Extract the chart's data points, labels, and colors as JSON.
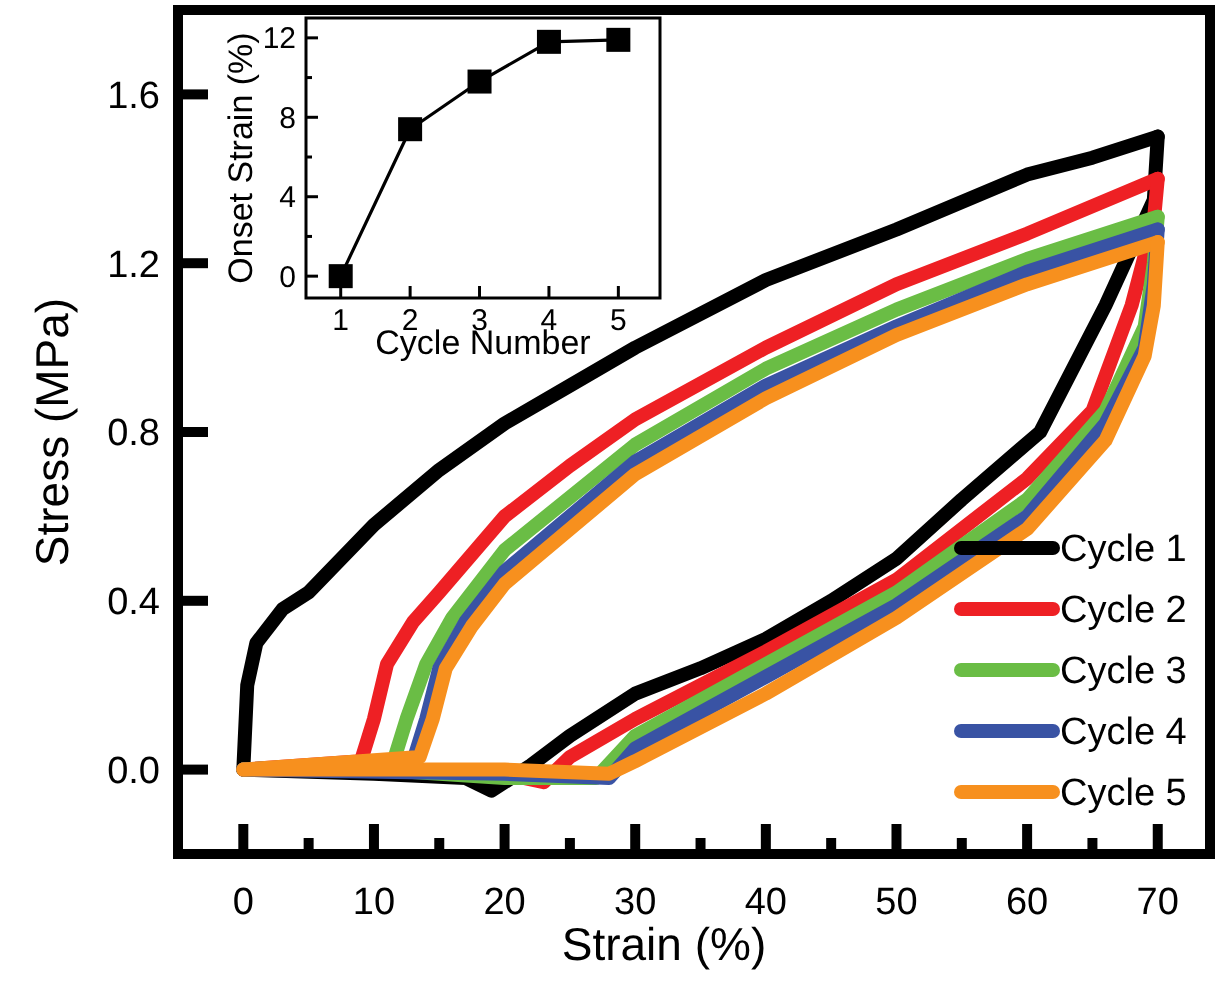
{
  "chart_data": [
    {
      "type": "line",
      "xlabel": "Strain (%)",
      "ylabel": "Stress (MPa)",
      "xlim": [
        -5,
        74
      ],
      "ylim": [
        -0.2,
        1.8
      ],
      "xticks": [
        0,
        {
          "value": 5,
          "label": null
        },
        10,
        {
          "value": 15,
          "label": null
        },
        20,
        {
          "value": 25,
          "label": null
        },
        30,
        {
          "value": 35,
          "label": null
        },
        40,
        {
          "value": 45,
          "label": null
        },
        50,
        {
          "value": 55,
          "label": null
        },
        60,
        {
          "value": 65,
          "label": null
        },
        70
      ],
      "yticks": [
        {
          "value": 0,
          "label": "0.0"
        },
        {
          "value": 0.4,
          "label": "0.4"
        },
        {
          "value": 0.8,
          "label": "0.8"
        },
        {
          "value": 1.2,
          "label": "1.2"
        },
        {
          "value": 1.6,
          "label": "1.6"
        }
      ],
      "legend": "bottom right",
      "marker": "none",
      "line_style": "solid",
      "series": [
        {
          "name": "Cycle 1",
          "color": "#000000",
          "x": [
            0,
            0.3,
            1,
            3,
            5,
            10,
            15,
            20,
            25,
            30,
            40,
            50,
            60,
            65,
            70
          ],
          "values": [
            0,
            0.2,
            0.3,
            0.38,
            0.42,
            0.58,
            0.71,
            0.82,
            0.91,
            1.0,
            1.16,
            1.28,
            1.41,
            1.45,
            1.5
          ]
        },
        {
          "color": "#000000",
          "x": [
            70,
            69.7,
            66,
            61,
            55,
            50,
            45,
            40,
            35,
            30,
            25,
            22,
            19,
            17,
            10,
            0
          ],
          "values": [
            1.5,
            1.35,
            1.1,
            0.8,
            0.64,
            0.5,
            0.4,
            0.31,
            0.24,
            0.18,
            0.08,
            0.01,
            -0.05,
            -0.02,
            -0.01,
            0
          ]
        },
        {
          "name": "Cycle 2",
          "color": "#ee2024",
          "x": [
            0,
            9,
            10,
            11,
            13,
            15,
            20,
            25,
            30,
            40,
            50,
            60,
            70
          ],
          "values": [
            0,
            0.02,
            0.12,
            0.25,
            0.35,
            0.42,
            0.6,
            0.72,
            0.83,
            1.0,
            1.15,
            1.27,
            1.4
          ]
        },
        {
          "color": "#ee2024",
          "x": [
            70,
            69.7,
            68,
            65,
            60,
            50,
            40,
            30,
            25,
            23,
            20,
            10,
            0
          ],
          "values": [
            1.4,
            1.3,
            1.1,
            0.85,
            0.69,
            0.45,
            0.28,
            0.12,
            0.03,
            -0.03,
            -0.01,
            0,
            0
          ]
        },
        {
          "name": "Cycle 3",
          "color": "#6abd45",
          "x": [
            0,
            11.5,
            12.5,
            14,
            16,
            20,
            30,
            40,
            50,
            60,
            70
          ],
          "values": [
            0,
            0.02,
            0.12,
            0.25,
            0.36,
            0.52,
            0.77,
            0.95,
            1.09,
            1.21,
            1.31
          ]
        },
        {
          "color": "#6abd45",
          "x": [
            70,
            69.7,
            69,
            66,
            60,
            50,
            40,
            30,
            27,
            20,
            10,
            0
          ],
          "values": [
            1.31,
            1.2,
            1.05,
            0.85,
            0.64,
            0.42,
            0.25,
            0.08,
            -0.02,
            -0.02,
            0,
            0
          ]
        },
        {
          "name": "Cycle 4",
          "color": "#3953a4",
          "x": [
            0,
            13,
            14,
            15,
            17,
            20,
            30,
            40,
            50,
            60,
            70
          ],
          "values": [
            0,
            0.02,
            0.12,
            0.24,
            0.35,
            0.47,
            0.73,
            0.91,
            1.05,
            1.18,
            1.28
          ]
        },
        {
          "color": "#3953a4",
          "x": [
            70,
            69.7,
            69,
            66,
            60,
            50,
            40,
            30,
            28,
            20,
            0
          ],
          "values": [
            1.28,
            1.15,
            1.0,
            0.82,
            0.6,
            0.39,
            0.22,
            0.05,
            -0.02,
            -0.01,
            0
          ]
        },
        {
          "name": "Cycle 5",
          "color": "#f7901e",
          "x": [
            0,
            13.5,
            14.5,
            15.5,
            17.5,
            20,
            30,
            40,
            50,
            60,
            70
          ],
          "values": [
            0,
            0.03,
            0.12,
            0.24,
            0.34,
            0.44,
            0.7,
            0.88,
            1.03,
            1.15,
            1.25
          ]
        },
        {
          "color": "#f7901e",
          "x": [
            70,
            69.7,
            69,
            66,
            60,
            50,
            40,
            30,
            28,
            20,
            0
          ],
          "values": [
            1.25,
            1.1,
            0.98,
            0.78,
            0.57,
            0.36,
            0.18,
            0.02,
            -0.01,
            0,
            0
          ]
        }
      ]
    },
    {
      "type": "line",
      "xlabel": "Cycle Number",
      "ylabel": "Onset Strain (%)",
      "xlim": [
        0.5,
        5.6
      ],
      "ylim": [
        -1.1,
        13
      ],
      "xticks": [
        1,
        2,
        3,
        4,
        5
      ],
      "yticks": [
        0,
        {
          "value": 2,
          "label": null
        },
        4,
        {
          "value": 6,
          "label": null
        },
        8,
        {
          "value": 10,
          "label": null
        },
        12
      ],
      "marker": "square",
      "line_style": "solid",
      "series": [
        {
          "color": "#000000",
          "x": [
            1,
            2,
            3,
            4,
            5
          ],
          "values": [
            0,
            7.4,
            9.8,
            11.8,
            11.9
          ]
        }
      ]
    }
  ]
}
